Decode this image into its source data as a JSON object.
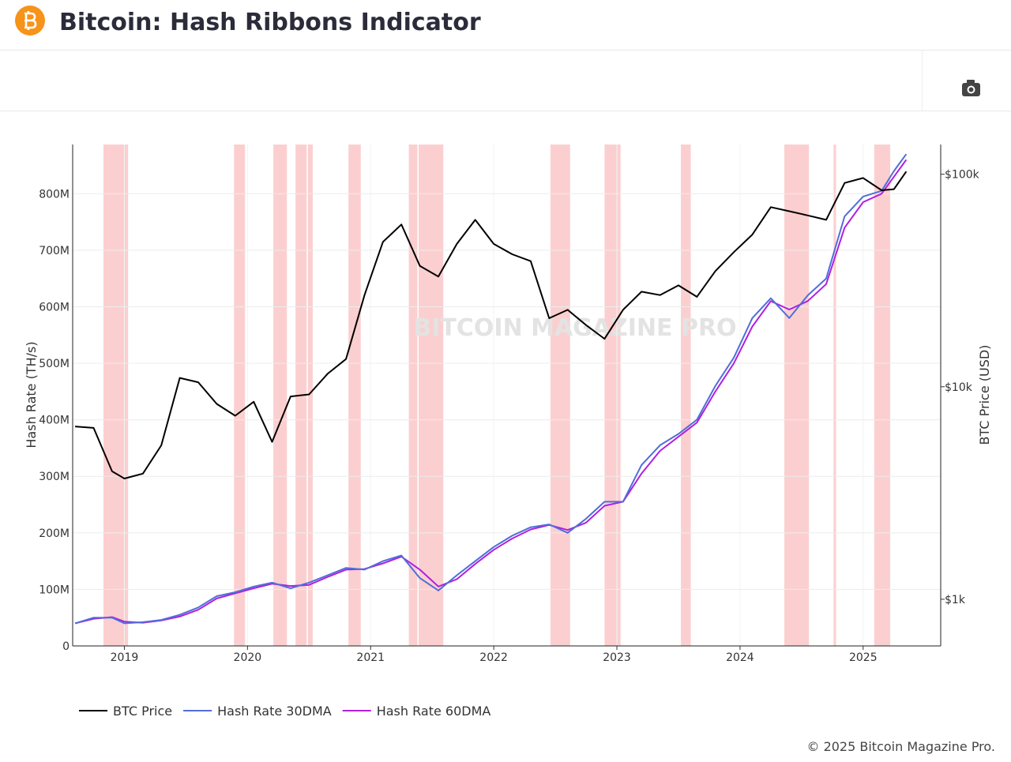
{
  "header": {
    "title": "Bitcoin: Hash Ribbons Indicator"
  },
  "footer": "© 2025 Bitcoin Magazine Pro.",
  "chart_data": {
    "type": "line",
    "watermark": "BITCOIN MAGAZINE PRO",
    "y_label": "Hash Rate (TH/s)",
    "y2_label": "BTC Price (USD)",
    "x": [
      2018.6,
      2018.75,
      2018.9,
      2019.0,
      2019.15,
      2019.3,
      2019.45,
      2019.6,
      2019.75,
      2019.9,
      2020.05,
      2020.2,
      2020.35,
      2020.5,
      2020.65,
      2020.8,
      2020.95,
      2021.1,
      2021.25,
      2021.4,
      2021.55,
      2021.7,
      2021.85,
      2022.0,
      2022.15,
      2022.3,
      2022.45,
      2022.6,
      2022.75,
      2022.9,
      2023.05,
      2023.2,
      2023.35,
      2023.5,
      2023.65,
      2023.8,
      2023.95,
      2024.1,
      2024.25,
      2024.4,
      2024.55,
      2024.7,
      2024.85,
      2025.0,
      2025.15,
      2025.25,
      2025.35
    ],
    "xlim": [
      2018.58,
      2025.63
    ],
    "xticks": [
      2019,
      2020,
      2021,
      2022,
      2023,
      2024,
      2025
    ],
    "ylim": [
      0,
      887000000
    ],
    "yticks": [
      0,
      {
        "value": 100000000,
        "label": "100M"
      },
      {
        "value": 200000000,
        "label": "200M"
      },
      {
        "value": 300000000,
        "label": "300M"
      },
      {
        "value": 400000000,
        "label": "400M"
      },
      {
        "value": 500000000,
        "label": "500M"
      },
      {
        "value": 600000000,
        "label": "600M"
      },
      {
        "value": 700000000,
        "label": "700M"
      },
      {
        "value": 800000000,
        "label": "800M"
      }
    ],
    "y2lim": [
      603,
      138000
    ],
    "y2_log": true,
    "y2ticks": [
      {
        "value": 1000,
        "label": "$1k"
      },
      {
        "value": 10000,
        "label": "$10k"
      },
      {
        "value": 100000,
        "label": "$100k"
      }
    ],
    "grid": true,
    "band_color": "#fbcfd0",
    "bands": [
      {
        "start": 2018.83,
        "end": 2019.03
      },
      {
        "start": 2019.89,
        "end": 2019.98
      },
      {
        "start": 2020.21,
        "end": 2020.32
      },
      {
        "start": 2020.39,
        "end": 2020.48
      },
      {
        "start": 2020.49,
        "end": 2020.53
      },
      {
        "start": 2020.82,
        "end": 2020.92
      },
      {
        "start": 2021.31,
        "end": 2021.38
      },
      {
        "start": 2021.39,
        "end": 2021.59
      },
      {
        "start": 2022.46,
        "end": 2022.62
      },
      {
        "start": 2022.9,
        "end": 2023.03
      },
      {
        "start": 2023.52,
        "end": 2023.6
      },
      {
        "start": 2024.36,
        "end": 2024.56
      },
      {
        "start": 2024.76,
        "end": 2024.78
      },
      {
        "start": 2025.09,
        "end": 2025.22
      }
    ],
    "series": [
      {
        "name": "BTC Price",
        "color": "#000000",
        "axis": "y2",
        "values": [
          6500,
          6400,
          4000,
          3700,
          3900,
          5300,
          11000,
          10500,
          8300,
          7300,
          8500,
          5500,
          9000,
          9200,
          11500,
          13500,
          27000,
          48000,
          58000,
          37000,
          33000,
          47000,
          61000,
          47000,
          42000,
          39000,
          21000,
          23000,
          19500,
          16800,
          23000,
          28000,
          27000,
          30000,
          26500,
          35000,
          43000,
          52000,
          70000,
          67000,
          64000,
          61000,
          91000,
          96000,
          84000,
          85000,
          103000
        ]
      },
      {
        "name": "Hash Rate 30DMA",
        "color": "#4f6fd8",
        "values": [
          40000000,
          50000000,
          50000000,
          40000000,
          42000000,
          46000000,
          55000000,
          68000000,
          88000000,
          95000000,
          105000000,
          112000000,
          102000000,
          112000000,
          125000000,
          138000000,
          135000000,
          150000000,
          160000000,
          120000000,
          98000000,
          125000000,
          150000000,
          175000000,
          195000000,
          210000000,
          215000000,
          200000000,
          225000000,
          255000000,
          255000000,
          320000000,
          355000000,
          375000000,
          400000000,
          460000000,
          510000000,
          580000000,
          615000000,
          580000000,
          620000000,
          650000000,
          760000000,
          795000000,
          805000000,
          840000000,
          870000000
        ]
      },
      {
        "name": "Hash Rate 60DMA",
        "color": "#b020e0",
        "values": [
          40000000,
          48000000,
          51000000,
          43000000,
          41000000,
          45000000,
          52000000,
          64000000,
          84000000,
          93000000,
          102000000,
          110000000,
          106000000,
          108000000,
          122000000,
          135000000,
          136000000,
          146000000,
          158000000,
          135000000,
          105000000,
          118000000,
          145000000,
          170000000,
          190000000,
          206000000,
          214000000,
          205000000,
          218000000,
          248000000,
          255000000,
          305000000,
          345000000,
          370000000,
          395000000,
          450000000,
          500000000,
          565000000,
          610000000,
          595000000,
          610000000,
          640000000,
          740000000,
          785000000,
          800000000,
          830000000,
          860000000
        ]
      }
    ]
  }
}
